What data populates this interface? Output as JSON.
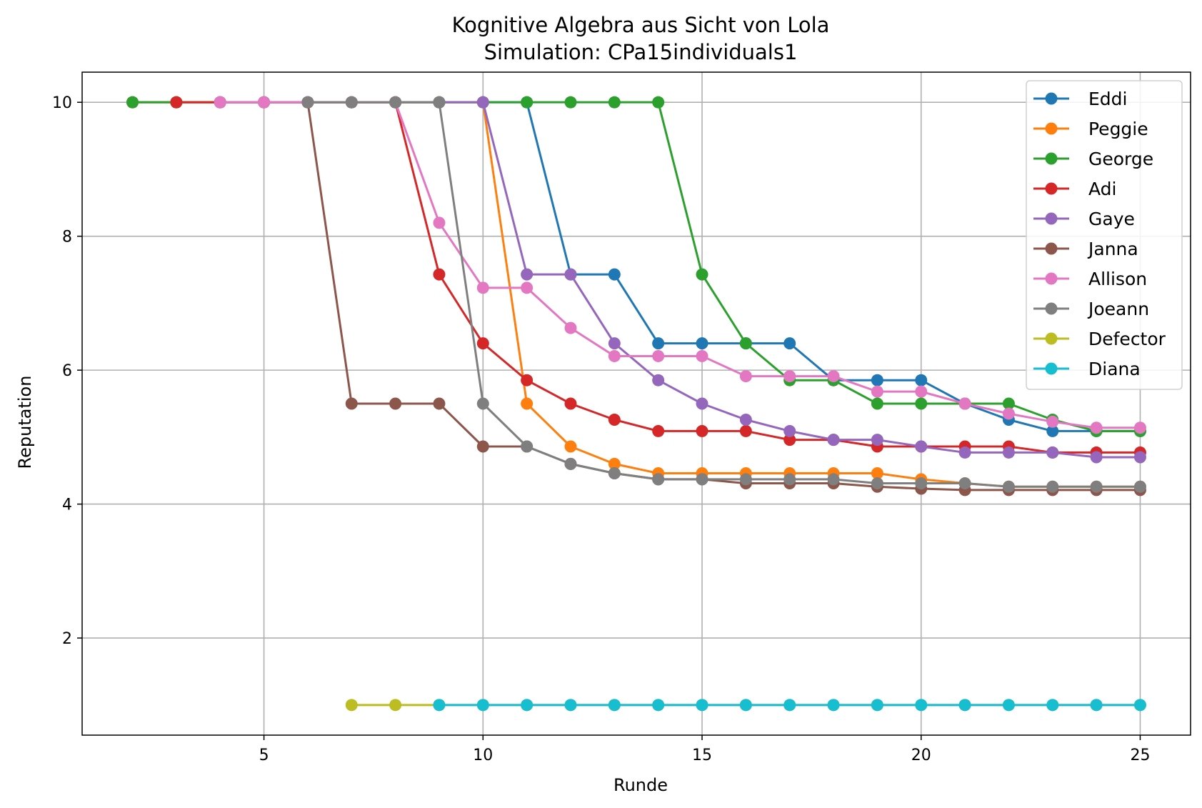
{
  "chart_data": {
    "type": "line",
    "title": "Kognitive Algebra aus Sicht von Lola",
    "subtitle": "Simulation: CPa15individuals1",
    "xlabel": "Runde",
    "ylabel": "Reputation",
    "xlim": [
      0.85,
      26.15
    ],
    "ylim": [
      0.55,
      10.45
    ],
    "xticks": [
      5,
      10,
      15,
      20,
      25
    ],
    "yticks": [
      2,
      4,
      6,
      8,
      10
    ],
    "grid": true,
    "legend_position": "top-right",
    "series": [
      {
        "name": "Eddi",
        "color": "#1f77b4",
        "x": [
          2,
          3,
          4,
          5,
          6,
          7,
          8,
          9,
          10,
          11,
          12,
          13,
          14,
          15,
          16,
          17,
          18,
          19,
          20,
          21,
          22,
          23,
          24,
          25
        ],
        "y": [
          10,
          10,
          10,
          10,
          10,
          10,
          10,
          10,
          10,
          10,
          7.43,
          7.43,
          6.4,
          6.4,
          6.4,
          6.4,
          5.85,
          5.85,
          5.85,
          5.5,
          5.26,
          5.09,
          5.09,
          5.09
        ]
      },
      {
        "name": "Peggie",
        "color": "#ff7f0e",
        "x": [
          2,
          3,
          4,
          5,
          6,
          7,
          8,
          9,
          10,
          11,
          12,
          13,
          14,
          15,
          16,
          17,
          18,
          19,
          20,
          21,
          22,
          23,
          24,
          25
        ],
        "y": [
          10,
          10,
          10,
          10,
          10,
          10,
          10,
          10,
          10,
          5.5,
          4.86,
          4.6,
          4.46,
          4.46,
          4.46,
          4.46,
          4.46,
          4.46,
          4.37,
          4.31,
          4.26,
          4.26,
          4.26,
          4.26
        ]
      },
      {
        "name": "George",
        "color": "#2ca02c",
        "x": [
          2,
          3,
          4,
          5,
          6,
          7,
          8,
          9,
          10,
          11,
          12,
          13,
          14,
          15,
          16,
          17,
          18,
          19,
          20,
          21,
          22,
          23,
          24,
          25
        ],
        "y": [
          10,
          10,
          10,
          10,
          10,
          10,
          10,
          10,
          10,
          10,
          10,
          10,
          10,
          7.43,
          6.4,
          5.85,
          5.85,
          5.5,
          5.5,
          5.5,
          5.5,
          5.26,
          5.09,
          5.09
        ]
      },
      {
        "name": "Adi",
        "color": "#d62728",
        "x": [
          3,
          4,
          5,
          6,
          7,
          8,
          9,
          10,
          11,
          12,
          13,
          14,
          15,
          16,
          17,
          18,
          19,
          20,
          21,
          22,
          23,
          24,
          25
        ],
        "y": [
          10,
          10,
          10,
          10,
          10,
          10,
          7.43,
          6.4,
          5.85,
          5.5,
          5.26,
          5.09,
          5.09,
          5.09,
          4.96,
          4.96,
          4.86,
          4.86,
          4.86,
          4.86,
          4.77,
          4.77,
          4.77
        ]
      },
      {
        "name": "Gaye",
        "color": "#9467bd",
        "x": [
          4,
          5,
          6,
          7,
          8,
          9,
          10,
          11,
          12,
          13,
          14,
          15,
          16,
          17,
          18,
          19,
          20,
          21,
          22,
          23,
          24,
          25
        ],
        "y": [
          10,
          10,
          10,
          10,
          10,
          10,
          10,
          7.43,
          7.43,
          6.4,
          5.85,
          5.5,
          5.26,
          5.09,
          4.96,
          4.96,
          4.86,
          4.77,
          4.77,
          4.77,
          4.7,
          4.7
        ]
      },
      {
        "name": "Janna",
        "color": "#8c564b",
        "x": [
          6,
          7,
          8,
          9,
          10,
          11,
          12,
          13,
          14,
          15,
          16,
          17,
          18,
          19,
          20,
          21,
          22,
          23,
          24,
          25
        ],
        "y": [
          10,
          5.5,
          5.5,
          5.5,
          4.86,
          4.86,
          4.6,
          4.46,
          4.37,
          4.37,
          4.31,
          4.31,
          4.31,
          4.26,
          4.23,
          4.21,
          4.21,
          4.21,
          4.21,
          4.21
        ]
      },
      {
        "name": "Allison",
        "color": "#e377c2",
        "x": [
          4,
          5,
          6,
          7,
          8,
          9,
          10,
          11,
          12,
          13,
          14,
          15,
          16,
          17,
          18,
          19,
          20,
          21,
          22,
          23,
          24,
          25
        ],
        "y": [
          10,
          10,
          10,
          10,
          10,
          8.2,
          7.23,
          7.23,
          6.63,
          6.21,
          6.21,
          6.21,
          5.91,
          5.91,
          5.91,
          5.68,
          5.68,
          5.5,
          5.35,
          5.23,
          5.14,
          5.14
        ]
      },
      {
        "name": "Joeann",
        "color": "#7f7f7f",
        "x": [
          6,
          7,
          8,
          9,
          10,
          11,
          12,
          13,
          14,
          15,
          16,
          17,
          18,
          19,
          20,
          21,
          22,
          23,
          24,
          25
        ],
        "y": [
          10,
          10,
          10,
          10,
          5.5,
          4.86,
          4.6,
          4.46,
          4.37,
          4.37,
          4.37,
          4.37,
          4.37,
          4.31,
          4.31,
          4.31,
          4.26,
          4.26,
          4.26,
          4.26
        ]
      },
      {
        "name": "Defector",
        "color": "#bcbd22",
        "x": [
          7,
          8,
          9,
          10,
          11,
          12,
          13,
          14,
          15,
          16,
          17,
          18,
          19,
          20,
          21,
          22,
          23,
          24,
          25
        ],
        "y": [
          1,
          1,
          1,
          1,
          1,
          1,
          1,
          1,
          1,
          1,
          1,
          1,
          1,
          1,
          1,
          1,
          1,
          1,
          1
        ]
      },
      {
        "name": "Diana",
        "color": "#17becf",
        "x": [
          9,
          10,
          11,
          12,
          13,
          14,
          15,
          16,
          17,
          18,
          19,
          20,
          21,
          22,
          23,
          24,
          25
        ],
        "y": [
          1,
          1,
          1,
          1,
          1,
          1,
          1,
          1,
          1,
          1,
          1,
          1,
          1,
          1,
          1,
          1,
          1
        ]
      }
    ]
  }
}
